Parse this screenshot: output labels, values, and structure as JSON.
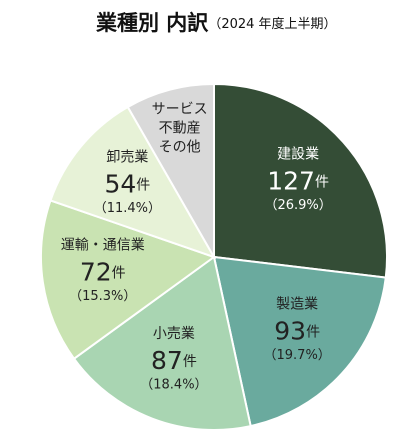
{
  "chart_data": {
    "type": "pie",
    "title": "業種別 内訳",
    "subtitle": "（2024 年度上半期）",
    "categories": [
      "建設業",
      "製造業",
      "小売業",
      "運輸・通信業",
      "卸売業",
      [
        "サービス",
        "不動産",
        "その他"
      ]
    ],
    "values": [
      26.9,
      19.7,
      18.4,
      15.3,
      11.4,
      8.3
    ],
    "value_labels": [
      "（26.9%）",
      "（19.7%）",
      "（18.4%）",
      "（15.3%）",
      "（11.4%）",
      null
    ],
    "counts": [
      127,
      93,
      87,
      72,
      54,
      null
    ],
    "count_unit": "件",
    "colors": [
      "#344d36",
      "#6aaa9e",
      "#a9d5b2",
      "#c9e3b2",
      "#e7f2d7",
      "#d9d9d9"
    ]
  }
}
